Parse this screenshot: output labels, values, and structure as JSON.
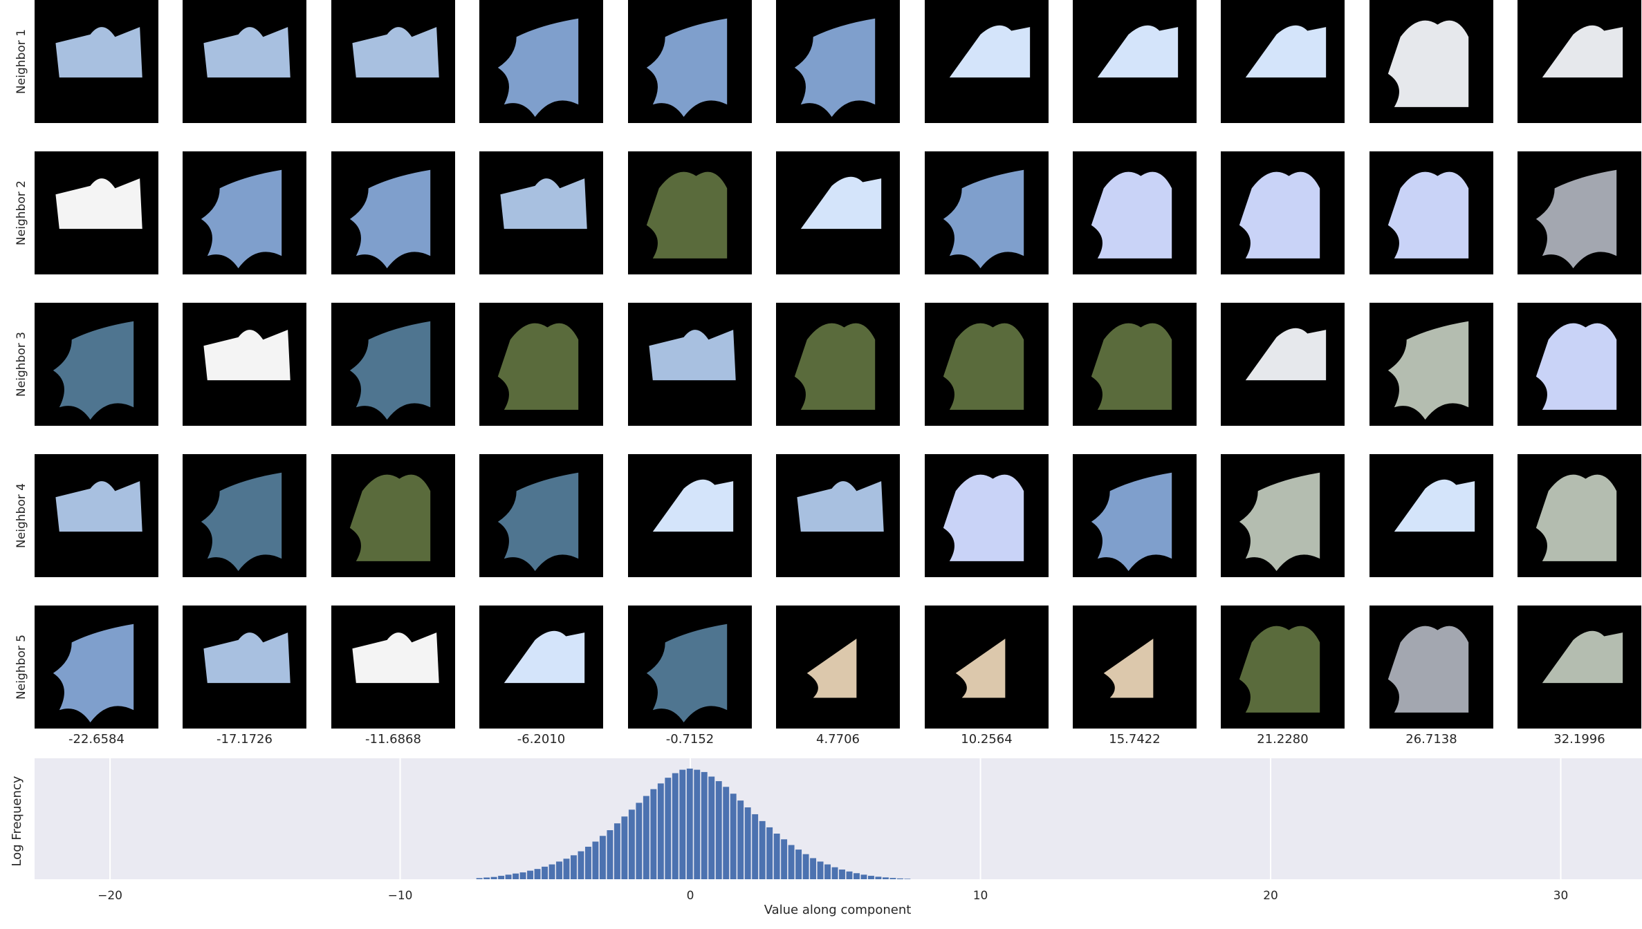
{
  "rows": [
    "Neighbor 1",
    "Neighbor 2",
    "Neighbor 3",
    "Neighbor 4",
    "Neighbor 5"
  ],
  "columns": [
    "-22.6584",
    "-17.1726",
    "-11.6868",
    "-6.2010",
    "-0.7152",
    "4.7706",
    "10.2564",
    "15.7422",
    "21.2280",
    "26.7138",
    "32.1996"
  ],
  "patch_colors": {
    "sky_cloud": "#a8c0e0",
    "sky_blue": "#7f9fcc",
    "sky_pale": "#d4e4fa",
    "sky_gray": "#e6e8ec",
    "sky_lavender": "#c9d3f7",
    "sky_teal": "#4f7590",
    "foliage": "#5a6b3c",
    "gray_green": "#b4bdb0",
    "gray_sky": "#a3a7b0",
    "skin": "#dcc8ac",
    "white_trees": "#f4f4f4"
  },
  "grid": [
    [
      "sky_cloud",
      "sky_cloud",
      "sky_cloud",
      "sky_blue",
      "sky_blue",
      "sky_blue",
      "sky_pale",
      "sky_pale",
      "sky_pale",
      "sky_gray",
      "sky_gray"
    ],
    [
      "white_trees",
      "sky_blue",
      "sky_blue",
      "sky_cloud",
      "foliage",
      "sky_pale",
      "sky_blue",
      "sky_lavender",
      "sky_lavender",
      "sky_lavender",
      "gray_sky"
    ],
    [
      "sky_teal",
      "white_trees",
      "sky_teal",
      "foliage",
      "sky_cloud",
      "foliage",
      "foliage",
      "foliage",
      "sky_gray",
      "gray_green",
      "sky_lavender"
    ],
    [
      "sky_cloud",
      "sky_teal",
      "foliage",
      "sky_teal",
      "sky_pale",
      "sky_cloud",
      "sky_lavender",
      "sky_blue",
      "gray_green",
      "sky_pale",
      "gray_green"
    ],
    [
      "sky_blue",
      "sky_cloud",
      "white_trees",
      "sky_pale",
      "sky_teal",
      "skin",
      "skin",
      "skin",
      "foliage",
      "gray_sky",
      "gray_green"
    ]
  ],
  "chart_data": {
    "type": "bar",
    "xlabel": "Value along component",
    "ylabel": "Log Frequency",
    "xlim": [
      -22.6,
      32.8
    ],
    "xticks": [
      -20,
      -10,
      0,
      10,
      20,
      30
    ],
    "xtick_labels": [
      "−20",
      "−10",
      "0",
      "10",
      "20",
      "30"
    ],
    "grid": true,
    "bar_color": "#4c72b0",
    "background": "#eaeaf2",
    "bin_width": 0.25,
    "x": [
      -7.25,
      -7.0,
      -6.75,
      -6.5,
      -6.25,
      -6.0,
      -5.75,
      -5.5,
      -5.25,
      -5.0,
      -4.75,
      -4.5,
      -4.25,
      -4.0,
      -3.75,
      -3.5,
      -3.25,
      -3.0,
      -2.75,
      -2.5,
      -2.25,
      -2.0,
      -1.75,
      -1.5,
      -1.25,
      -1.0,
      -0.75,
      -0.5,
      -0.25,
      0.0,
      0.25,
      0.5,
      0.75,
      1.0,
      1.25,
      1.5,
      1.75,
      2.0,
      2.25,
      2.5,
      2.75,
      3.0,
      3.25,
      3.5,
      3.75,
      4.0,
      4.25,
      4.5,
      4.75,
      5.0,
      5.25,
      5.5,
      5.75,
      6.0,
      6.25,
      6.5,
      6.75,
      7.0,
      7.25,
      7.5
    ],
    "values": [
      0.01,
      0.015,
      0.02,
      0.03,
      0.04,
      0.05,
      0.06,
      0.075,
      0.09,
      0.11,
      0.13,
      0.155,
      0.18,
      0.21,
      0.245,
      0.285,
      0.33,
      0.38,
      0.43,
      0.49,
      0.55,
      0.61,
      0.67,
      0.73,
      0.79,
      0.84,
      0.89,
      0.93,
      0.96,
      0.97,
      0.96,
      0.94,
      0.9,
      0.86,
      0.81,
      0.75,
      0.69,
      0.63,
      0.57,
      0.51,
      0.455,
      0.4,
      0.35,
      0.3,
      0.26,
      0.22,
      0.185,
      0.155,
      0.13,
      0.105,
      0.085,
      0.068,
      0.053,
      0.04,
      0.03,
      0.022,
      0.016,
      0.011,
      0.007,
      0.004
    ],
    "ylim": [
      0,
      1
    ]
  }
}
